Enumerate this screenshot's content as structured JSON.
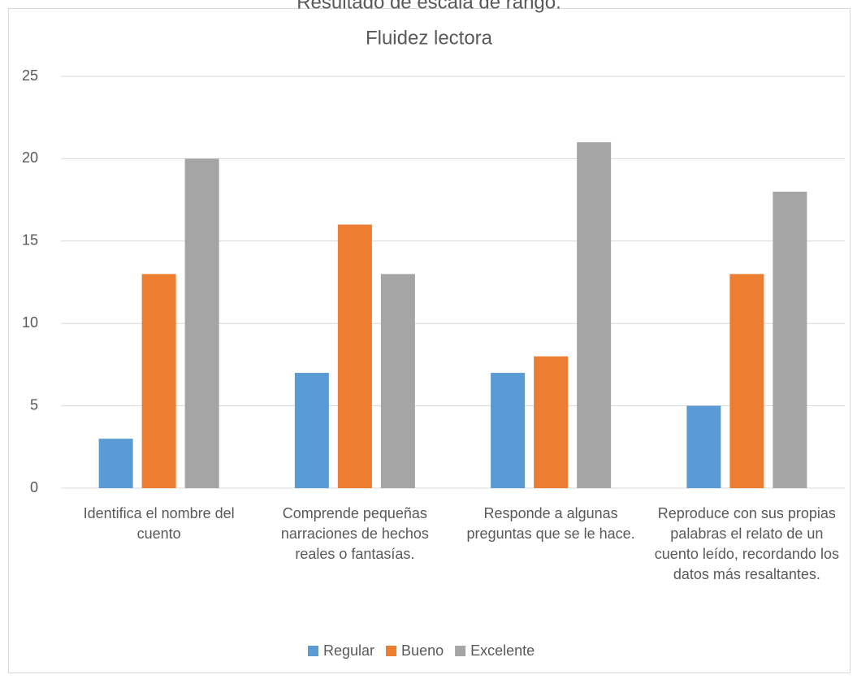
{
  "chart_data": {
    "type": "bar",
    "supertitle": "Resultado de escala de rango.",
    "title": "Fluidez lectora",
    "categories": [
      "Identifica el nombre del cuento",
      "Comprende pequeñas narraciones de hechos reales o fantasías.",
      "Responde a algunas preguntas que se le hace.",
      "Reproduce con sus propias palabras el relato de un cuento leído, recordando los datos más resaltantes."
    ],
    "series": [
      {
        "name": "Regular",
        "color": "#5b9bd5",
        "values": [
          3,
          7,
          7,
          5
        ]
      },
      {
        "name": "Bueno",
        "color": "#ed7d31",
        "values": [
          13,
          16,
          8,
          13
        ]
      },
      {
        "name": "Excelente",
        "color": "#a5a5a5",
        "values": [
          20,
          13,
          21,
          18
        ]
      }
    ],
    "ylim": [
      0,
      25
    ],
    "yticks": [
      0,
      5,
      10,
      15,
      20,
      25
    ],
    "grid": true,
    "legend": "bottom"
  }
}
